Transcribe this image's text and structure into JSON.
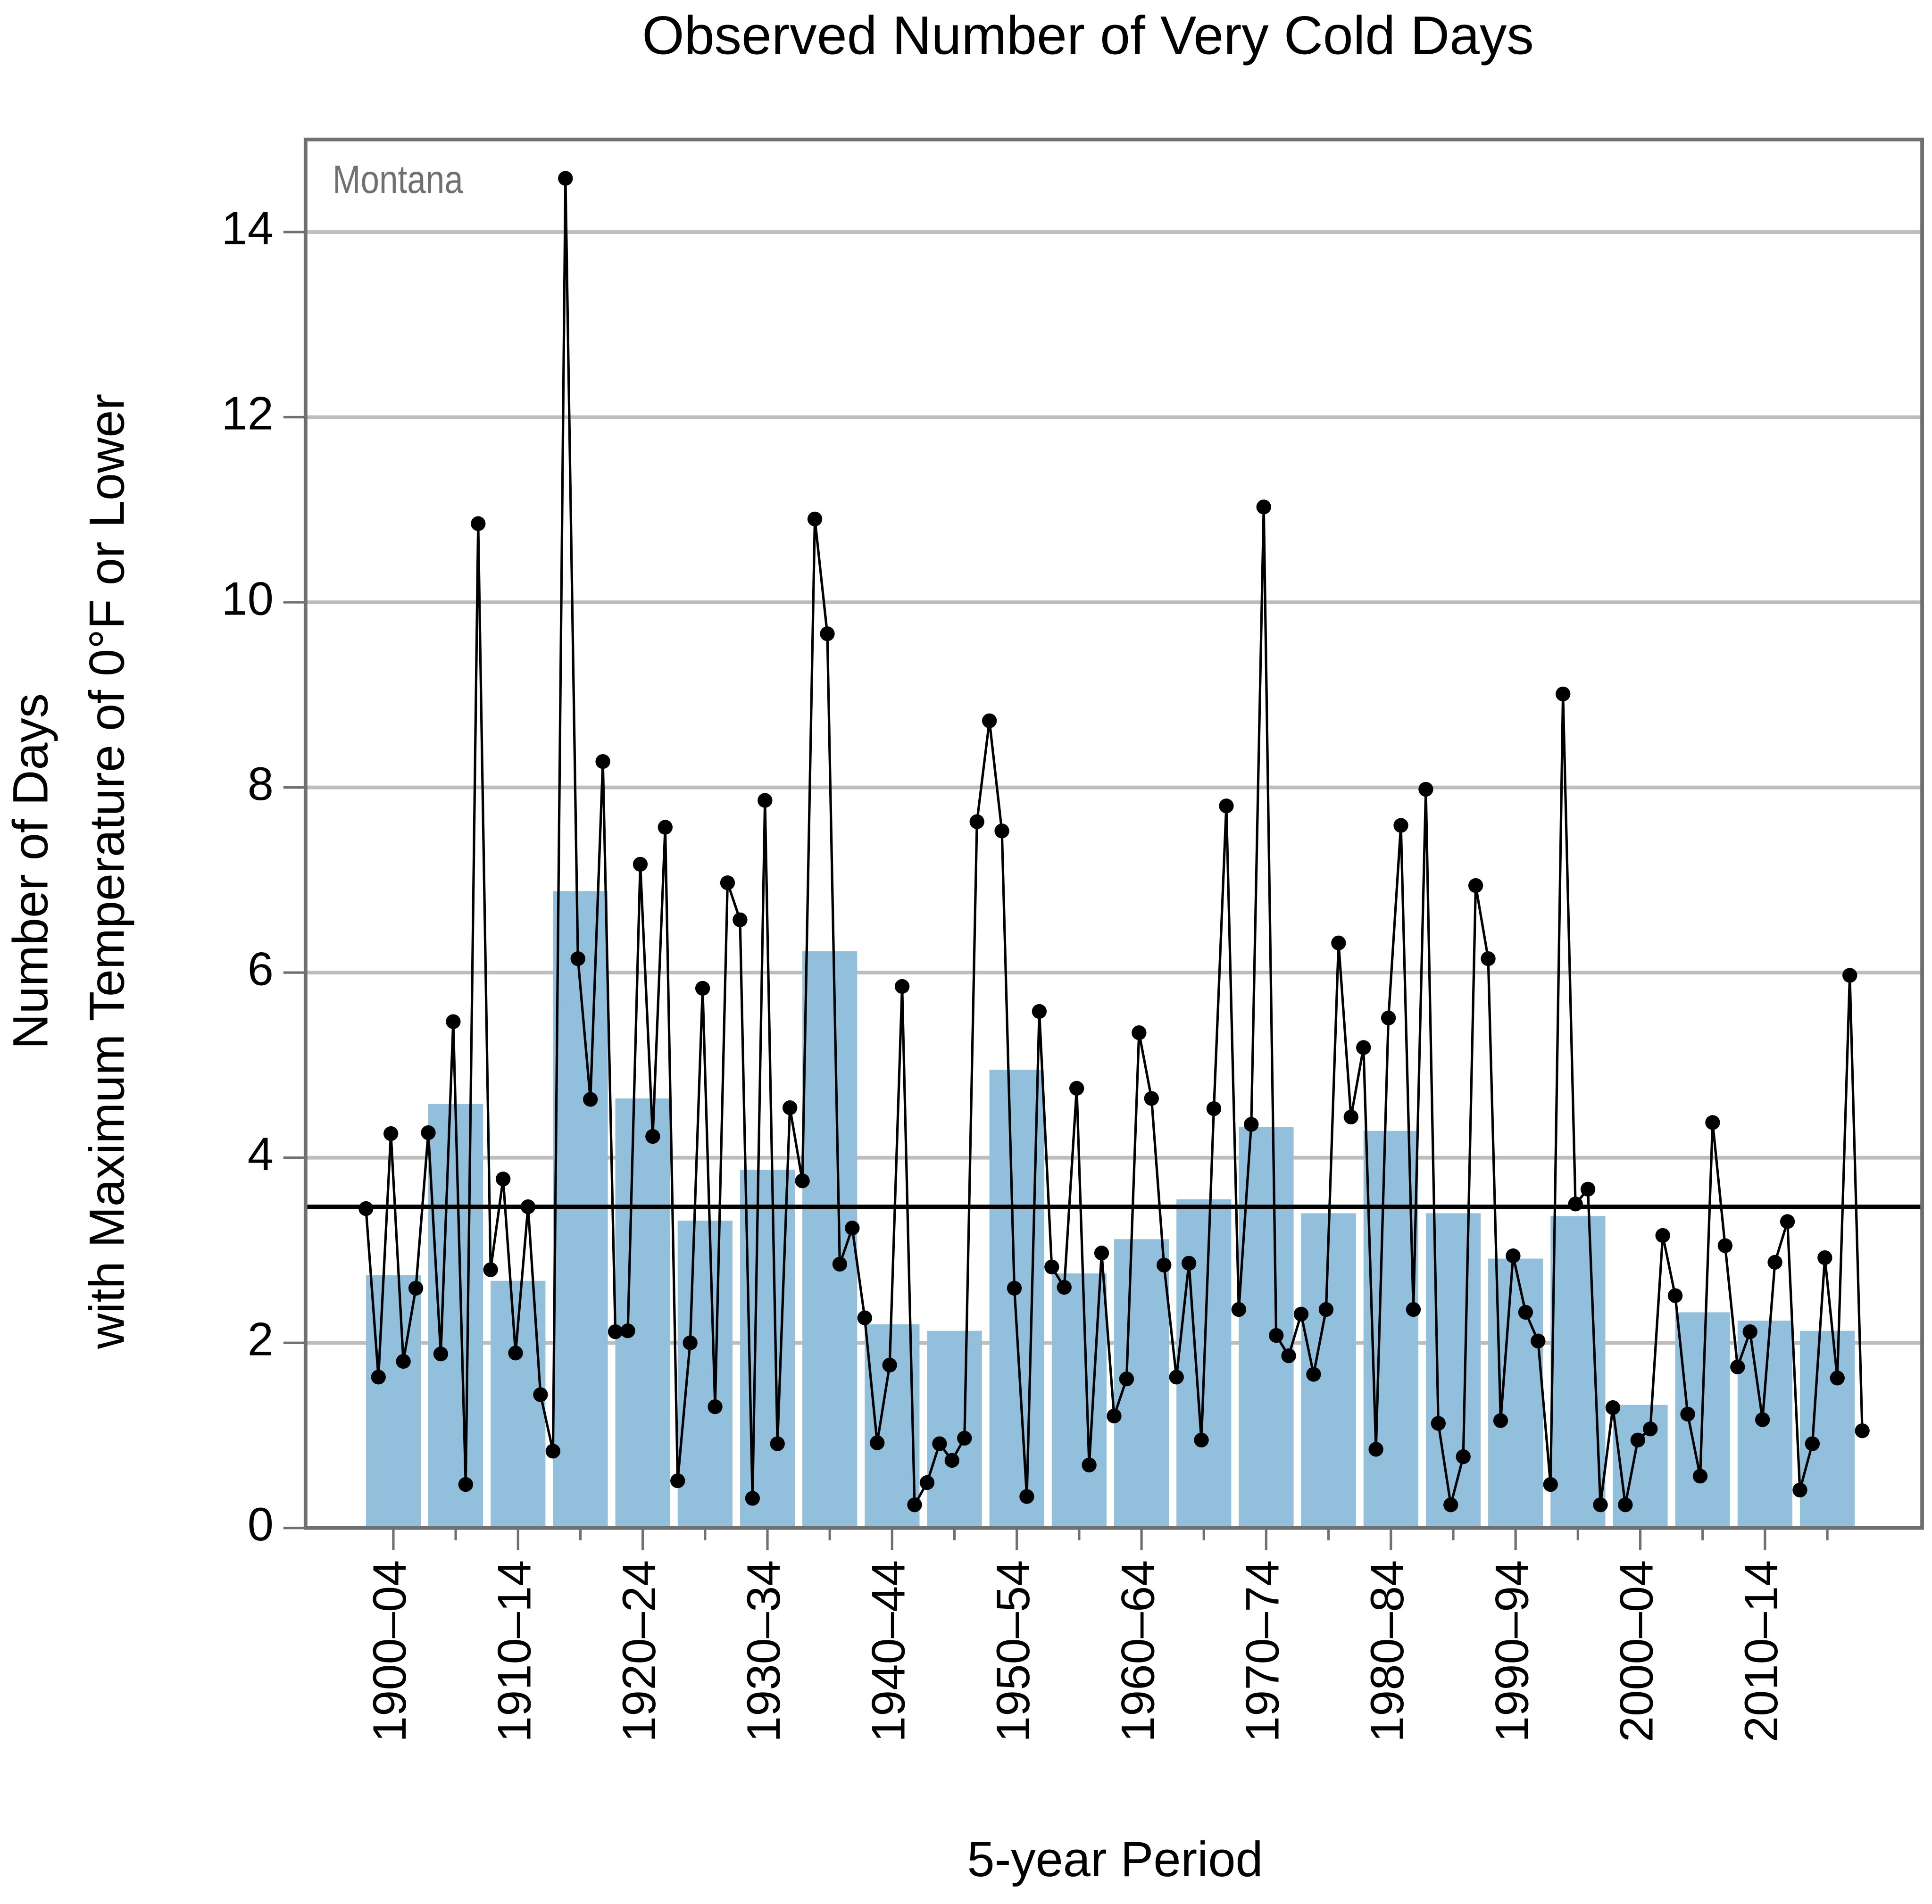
{
  "chart_data": {
    "type": "bar+line",
    "title": "Observed Number of Very Cold Days",
    "annotation": "Montana",
    "x_label": "5-year Period",
    "y_label": [
      "Number of Days",
      "with Maximum Temperature of 0°F or Lower"
    ],
    "categories": [
      "1900–04",
      null,
      "1910–14",
      null,
      "1920–24",
      null,
      "1930–34",
      null,
      "1940–44",
      null,
      "1950–54",
      null,
      "1960–64",
      null,
      "1970–74",
      null,
      "1980–84",
      null,
      "1990–94",
      null,
      "2000–04",
      null,
      "2010–14",
      null
    ],
    "bars": {
      "color": "#92bfdc",
      "values": [
        2.73,
        4.58,
        2.67,
        6.88,
        4.64,
        3.32,
        3.87,
        6.23,
        2.2,
        2.13,
        4.95,
        2.75,
        3.12,
        3.55,
        4.33,
        3.4,
        4.29,
        3.4,
        2.91,
        3.37,
        1.33,
        2.33,
        2.24,
        2.13
      ]
    },
    "x": [
      1900,
      1901,
      1902,
      1903,
      1904,
      1905,
      1906,
      1907,
      1908,
      1909,
      1910,
      1911,
      1912,
      1913,
      1914,
      1915,
      1916,
      1917,
      1918,
      1919,
      1920,
      1921,
      1922,
      1923,
      1924,
      1925,
      1926,
      1927,
      1928,
      1929,
      1930,
      1931,
      1932,
      1933,
      1934,
      1935,
      1936,
      1937,
      1938,
      1939,
      1940,
      1941,
      1942,
      1943,
      1944,
      1945,
      1946,
      1947,
      1948,
      1949,
      1950,
      1951,
      1952,
      1953,
      1954,
      1955,
      1956,
      1957,
      1958,
      1959,
      1960,
      1961,
      1962,
      1963,
      1964,
      1965,
      1966,
      1967,
      1968,
      1969,
      1970,
      1971,
      1972,
      1973,
      1974,
      1975,
      1976,
      1977,
      1978,
      1979,
      1980,
      1981,
      1982,
      1983,
      1984,
      1985,
      1986,
      1987,
      1988,
      1989,
      1990,
      1991,
      1992,
      1993,
      1994,
      1995,
      1996,
      1997,
      1998,
      1999,
      2000,
      2001,
      2002,
      2003,
      2004,
      2005,
      2006,
      2007,
      2008,
      2009,
      2010,
      2011,
      2012,
      2013,
      2014,
      2015,
      2016,
      2017,
      2018,
      2019,
      2020
    ],
    "line": {
      "color": "#000000",
      "values": [
        3.45,
        1.63,
        4.26,
        1.8,
        2.59,
        4.27,
        1.88,
        5.47,
        0.47,
        10.85,
        2.79,
        3.77,
        1.89,
        3.47,
        1.44,
        0.83,
        14.58,
        6.15,
        4.63,
        8.28,
        2.12,
        2.13,
        7.17,
        4.23,
        7.57,
        0.51,
        2.0,
        5.83,
        1.31,
        6.97,
        6.57,
        0.32,
        7.86,
        0.91,
        4.54,
        3.75,
        10.9,
        9.66,
        2.85,
        3.24,
        2.27,
        0.92,
        1.76,
        5.85,
        0.25,
        0.49,
        0.91,
        0.73,
        0.97,
        7.63,
        8.72,
        7.53,
        2.59,
        0.34,
        5.58,
        2.82,
        2.6,
        4.75,
        0.68,
        2.97,
        1.21,
        1.61,
        5.35,
        4.64,
        2.84,
        1.63,
        2.86,
        0.95,
        4.53,
        7.8,
        2.36,
        4.36,
        11.03,
        2.08,
        1.86,
        2.31,
        1.66,
        2.36,
        6.32,
        4.44,
        5.19,
        0.85,
        5.51,
        7.59,
        2.36,
        7.98,
        1.13,
        0.25,
        0.77,
        6.94,
        6.15,
        1.16,
        2.94,
        2.33,
        2.02,
        0.47,
        9.01,
        3.5,
        3.66,
        0.25,
        1.3,
        0.25,
        0.95,
        1.07,
        3.16,
        2.51,
        1.23,
        0.56,
        4.38,
        3.05,
        1.74,
        2.12,
        1.17,
        2.87,
        3.31,
        0.41,
        0.91,
        2.92,
        1.62,
        5.97,
        1.05
      ]
    },
    "reference_line": 3.47,
    "ylim": [
      0,
      15
    ],
    "yticks": [
      0,
      2,
      4,
      6,
      8,
      10,
      12,
      14
    ],
    "grid": true
  }
}
